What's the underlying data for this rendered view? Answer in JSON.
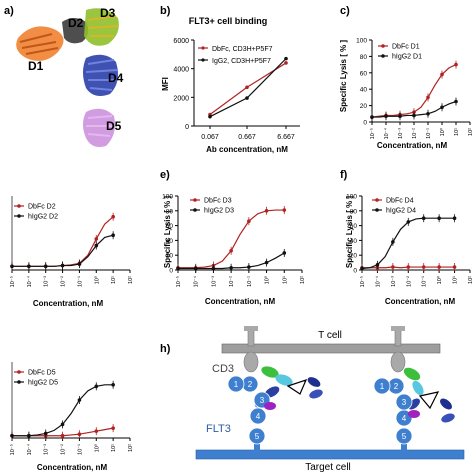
{
  "structure": {
    "label": "a)",
    "domain_labels": [
      "D1",
      "D2",
      "D3",
      "D4",
      "D5"
    ]
  },
  "chart_data": [
    {
      "id": "b",
      "label": "b)",
      "type": "line",
      "title": "FLT3+ cell binding",
      "xlabel": "Ab concentration, nM",
      "ylabel": "MFI",
      "categories": [
        "0.067",
        "0.667",
        "6.667"
      ],
      "ylim": [
        0,
        6000
      ],
      "yticks": [
        "0",
        "2000",
        "4000",
        "6000"
      ],
      "legend": "top-left",
      "series": [
        {
          "name": "DbFc, CD3H+P5F7",
          "color": "#b22222",
          "values": [
            800,
            2700,
            4400
          ]
        },
        {
          "name": "IgG2, CD3H+P5F7",
          "color": "#111111",
          "values": [
            650,
            1950,
            4700
          ]
        }
      ]
    },
    {
      "id": "c",
      "label": "c)",
      "type": "line",
      "xlabel": "Concentration, nM",
      "ylabel": "Specific Lysis [ % ]",
      "ylim": [
        0,
        100
      ],
      "yticks": [
        "0",
        "20",
        "40",
        "60",
        "80",
        "100"
      ],
      "xlog": true,
      "xlim_log10": [
        -5,
        2
      ],
      "xtick_labels": [
        "10⁻⁵",
        "10⁻⁴",
        "10⁻³",
        "10⁻²",
        "10⁻¹",
        "10⁰",
        "10¹",
        "10²"
      ],
      "legend": "top-left",
      "series": [
        {
          "name": "DbFc D1",
          "color": "#b22222",
          "log10_x": [
            -5,
            -4.5,
            -4,
            -3.5,
            -3,
            -2.5,
            -2,
            -1.5,
            -1,
            -0.5,
            0,
            0.5,
            1
          ],
          "y": [
            6,
            7,
            8,
            8,
            9,
            10,
            12,
            18,
            30,
            45,
            58,
            66,
            70
          ]
        },
        {
          "name": "hIgG2 D1",
          "color": "#111111",
          "log10_x": [
            -5,
            -4.5,
            -4,
            -3.5,
            -3,
            -2.5,
            -2,
            -1.5,
            -1,
            -0.5,
            0,
            0.5,
            1
          ],
          "y": [
            6,
            6,
            7,
            7,
            7,
            8,
            8,
            9,
            10,
            13,
            18,
            22,
            25
          ]
        }
      ]
    },
    {
      "id": "d",
      "label": "",
      "type": "line",
      "xlabel": "Concentration, nM",
      "ylabel": "",
      "ylim": [
        0,
        100
      ],
      "yticks": [],
      "xlog": true,
      "xlim_log10": [
        -5,
        2
      ],
      "xtick_labels": [
        "10⁻⁵",
        "10⁻⁴",
        "10⁻³",
        "10⁻²",
        "10⁻¹",
        "10⁰",
        "10¹",
        "10²"
      ],
      "legend": "top-left",
      "series": [
        {
          "name": "DbFc D2",
          "color": "#b22222",
          "log10_x": [
            -5,
            -4.5,
            -4,
            -3.5,
            -3,
            -2.5,
            -2,
            -1.5,
            -1,
            -0.5,
            0,
            0.5,
            1
          ],
          "y": [
            5,
            5,
            5,
            5,
            5,
            5,
            6,
            7,
            9,
            20,
            42,
            62,
            72
          ]
        },
        {
          "name": "hIgG2 D2",
          "color": "#111111",
          "log10_x": [
            -5,
            -4.5,
            -4,
            -3.5,
            -3,
            -2.5,
            -2,
            -1.5,
            -1,
            -0.5,
            0,
            0.5,
            1
          ],
          "y": [
            5,
            5,
            5,
            5,
            5,
            5,
            6,
            6,
            8,
            18,
            33,
            44,
            47
          ]
        }
      ]
    },
    {
      "id": "e",
      "label": "e)",
      "type": "line",
      "xlabel": "Concentration, nM",
      "ylabel": "Specific Lysis [ % ]",
      "ylim": [
        0,
        100
      ],
      "yticks": [
        "0",
        "20",
        "40",
        "60",
        "80",
        "100"
      ],
      "xlog": true,
      "xlim_log10": [
        -5,
        2
      ],
      "xtick_labels": [
        "10⁻⁵",
        "10⁻⁴",
        "10⁻³",
        "10⁻²",
        "10⁻¹",
        "10⁰",
        "10¹",
        "10²"
      ],
      "legend": "top-left",
      "series": [
        {
          "name": "DbFc D3",
          "color": "#b22222",
          "log10_x": [
            -5,
            -4.5,
            -4,
            -3.5,
            -3,
            -2.5,
            -2,
            -1.5,
            -1,
            -0.5,
            0,
            0.5,
            1
          ],
          "y": [
            3,
            3,
            3,
            4,
            6,
            12,
            26,
            48,
            66,
            76,
            80,
            81,
            81
          ]
        },
        {
          "name": "hIgG2 D3",
          "color": "#111111",
          "log10_x": [
            -5,
            -4.5,
            -4,
            -3.5,
            -3,
            -2.5,
            -2,
            -1.5,
            -1,
            -0.5,
            0,
            0.5,
            1
          ],
          "y": [
            2,
            2,
            2,
            2,
            2,
            2,
            3,
            3,
            4,
            6,
            10,
            16,
            23
          ]
        }
      ]
    },
    {
      "id": "f",
      "label": "f)",
      "type": "line",
      "xlabel": "Concentration, nM",
      "ylabel": "Specific Lysis [ % ]",
      "ylim": [
        0,
        100
      ],
      "yticks": [
        "0",
        "20",
        "40",
        "60",
        "80",
        "100"
      ],
      "xlog": true,
      "xlim_log10": [
        -5,
        2
      ],
      "xtick_labels": [
        "10⁻⁵",
        "10⁻⁴",
        "10⁻³",
        "10⁻²",
        "10⁻¹",
        "10⁰",
        "10¹",
        "10²"
      ],
      "legend": "top-left",
      "series": [
        {
          "name": "DbFc D4",
          "color": "#b22222",
          "log10_x": [
            -5,
            -4.5,
            -4,
            -3.5,
            -3,
            -2.5,
            -2,
            -1.5,
            -1,
            -0.5,
            0,
            0.5,
            1
          ],
          "y": [
            3,
            3,
            3,
            3,
            4,
            3,
            4,
            4,
            4,
            4,
            4,
            4,
            4
          ]
        },
        {
          "name": "hIgG2 D4",
          "color": "#111111",
          "log10_x": [
            -5,
            -4.5,
            -4,
            -3.5,
            -3,
            -2.5,
            -2,
            -1.5,
            -1,
            -0.5,
            0,
            0.5,
            1
          ],
          "y": [
            2,
            3,
            7,
            18,
            38,
            55,
            65,
            69,
            70,
            70,
            70,
            70,
            70
          ]
        }
      ]
    },
    {
      "id": "g",
      "label": "",
      "type": "line",
      "xlabel": "Concentration, nM",
      "ylabel": "",
      "ylim": [
        0,
        100
      ],
      "yticks": [],
      "xlog": true,
      "xlim_log10": [
        -5,
        2
      ],
      "xtick_labels": [
        "10⁻⁵",
        "10⁻⁴",
        "10⁻³",
        "10⁻²",
        "10⁻¹",
        "10⁰",
        "10¹",
        "10²"
      ],
      "legend": "top-left",
      "series": [
        {
          "name": "DbFc D5",
          "color": "#b22222",
          "log10_x": [
            -5,
            -4.5,
            -4,
            -3.5,
            -3,
            -2.5,
            -2,
            -1.5,
            -1,
            -0.5,
            0,
            0.5,
            1
          ],
          "y": [
            3,
            3,
            3,
            3,
            3,
            3,
            3,
            4,
            5,
            7,
            9,
            11,
            13
          ]
        },
        {
          "name": "hIgG2 D5",
          "color": "#111111",
          "log10_x": [
            -5,
            -4.5,
            -4,
            -3.5,
            -3,
            -2.5,
            -2,
            -1.5,
            -1,
            -0.5,
            0,
            0.5,
            1
          ],
          "y": [
            3,
            3,
            3,
            4,
            6,
            10,
            18,
            32,
            50,
            62,
            68,
            70,
            70
          ]
        }
      ]
    }
  ],
  "schematic": {
    "label": "h)",
    "t_cell": "T cell",
    "target_cell": "Target cell",
    "cd3": "CD3",
    "flt3": "FLT3",
    "left_domains": [
      "1",
      "2",
      "3",
      "4",
      "5"
    ],
    "right_domains": [
      "1",
      "2",
      "3",
      "4",
      "5"
    ]
  }
}
